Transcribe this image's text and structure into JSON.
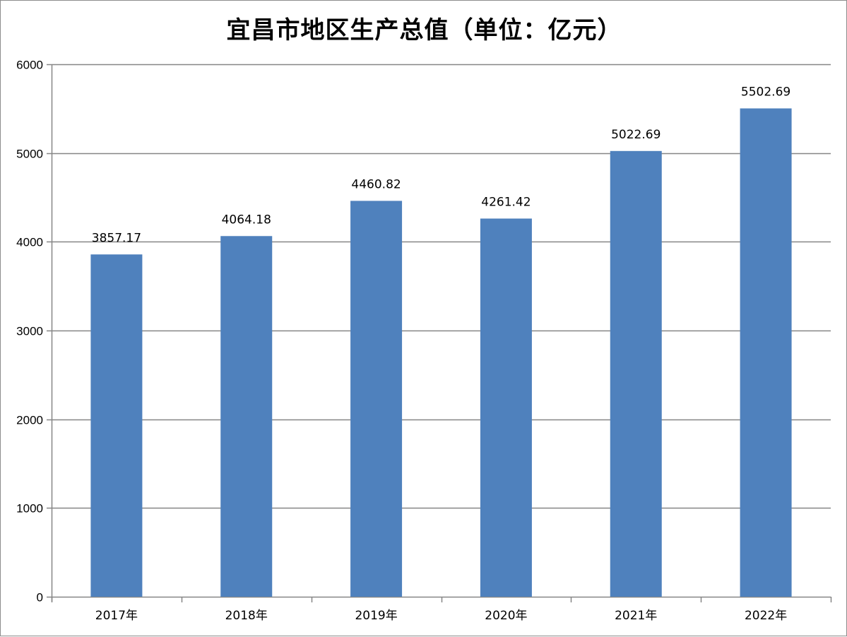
{
  "chart_data": {
    "type": "bar",
    "title": "宜昌市地区生产总值（单位：亿元）",
    "categories": [
      "2017年",
      "2018年",
      "2019年",
      "2020年",
      "2021年",
      "2022年"
    ],
    "values": [
      3857.17,
      4064.18,
      4460.82,
      4261.42,
      5022.69,
      5502.69
    ],
    "data_labels": [
      "3857.17",
      "4064.18",
      "4460.82",
      "4261.42",
      "5022.69",
      "5502.69"
    ],
    "y_ticks": [
      "0",
      "1000",
      "2000",
      "3000",
      "4000",
      "5000",
      "6000"
    ],
    "ylim": [
      0,
      6000
    ],
    "xlabel": "",
    "ylabel": "",
    "grid": true,
    "legend": "none",
    "bar_color": "#4f81bd",
    "grid_color": "#868686"
  }
}
